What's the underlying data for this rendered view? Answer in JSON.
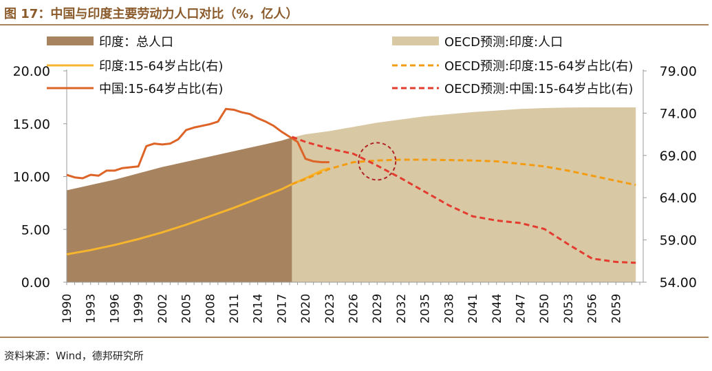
{
  "figure": {
    "title": "图 17：中国与印度主要劳动力人口对比（%，亿人）",
    "source": "资料来源：Wind，德邦研究所"
  },
  "colors": {
    "india_pop": "#A7835F",
    "oecd_india_pop": "#D8C8A4",
    "india_ratio": "#F7B52E",
    "oecd_india_ratio": "#F39C12",
    "china_ratio": "#DD6327",
    "oecd_china_ratio": "#E33B2E",
    "circle": "#B22222",
    "brand": "#8B5A2B"
  },
  "chart_data": {
    "type": "combo",
    "title": "中国与印度主要劳动力人口对比（%，亿人）",
    "x_ticks": [
      "1990",
      "1993",
      "1996",
      "1999",
      "2002",
      "2005",
      "2008",
      "2011",
      "2014",
      "2017",
      "2020",
      "2023",
      "2026",
      "2029",
      "2032",
      "2035",
      "2038",
      "2041",
      "2044",
      "2047",
      "2050",
      "2053",
      "2056",
      "2059"
    ],
    "x_range": [
      1990,
      2062
    ],
    "y_left": {
      "range": [
        0,
        20
      ],
      "ticks": [
        "0.00",
        "5.00",
        "10.00",
        "15.00",
        "20.00"
      ]
    },
    "y_right": {
      "range": [
        54,
        79
      ],
      "ticks": [
        "54.00",
        "59.00",
        "64.00",
        "69.00",
        "74.00",
        "79.00"
      ]
    },
    "legend": [
      {
        "label": "印度：总人口",
        "style": "area"
      },
      {
        "label": "OECD预测:印度:人口",
        "style": "area"
      },
      {
        "label": "印度:15-64岁占比(右)",
        "style": "line"
      },
      {
        "label": "OECD预测:印度:15-64岁占比(右)",
        "style": "dashed"
      },
      {
        "label": "中国:15-64岁占比(右)",
        "style": "line"
      },
      {
        "label": "OECD预测:中国:15-64岁占比(右)",
        "style": "dashed"
      }
    ],
    "series": [
      {
        "name": "印度：总人口",
        "axis": "left",
        "type": "area",
        "points": [
          [
            1990,
            8.7
          ],
          [
            1993,
            9.2
          ],
          [
            1996,
            9.7
          ],
          [
            1999,
            10.3
          ],
          [
            2002,
            10.9
          ],
          [
            2005,
            11.4
          ],
          [
            2008,
            11.9
          ],
          [
            2011,
            12.4
          ],
          [
            2014,
            12.9
          ],
          [
            2017,
            13.4
          ],
          [
            2018.3,
            13.7
          ]
        ]
      },
      {
        "name": "OECD预测:印度:人口",
        "axis": "left",
        "type": "area",
        "points": [
          [
            2018.3,
            13.7
          ],
          [
            2020,
            14.0
          ],
          [
            2023,
            14.3
          ],
          [
            2026,
            14.7
          ],
          [
            2029,
            15.1
          ],
          [
            2032,
            15.4
          ],
          [
            2035,
            15.7
          ],
          [
            2038,
            15.9
          ],
          [
            2041,
            16.1
          ],
          [
            2044,
            16.25
          ],
          [
            2047,
            16.4
          ],
          [
            2050,
            16.48
          ],
          [
            2053,
            16.53
          ],
          [
            2056,
            16.55
          ],
          [
            2059,
            16.55
          ],
          [
            2061.5,
            16.55
          ]
        ]
      },
      {
        "name": "印度:15-64岁占比(右)",
        "axis": "right",
        "type": "line",
        "points": [
          [
            1990,
            57.3
          ],
          [
            1993,
            57.8
          ],
          [
            1996,
            58.4
          ],
          [
            1999,
            59.1
          ],
          [
            2002,
            59.9
          ],
          [
            2005,
            60.8
          ],
          [
            2008,
            61.8
          ],
          [
            2011,
            62.8
          ],
          [
            2014,
            63.9
          ],
          [
            2017,
            65.0
          ],
          [
            2018.3,
            65.6
          ],
          [
            2020,
            66.3
          ],
          [
            2022,
            67.2
          ],
          [
            2023,
            67.5
          ]
        ]
      },
      {
        "name": "OECD预测:印度:15-64岁占比(右)",
        "axis": "right",
        "type": "dashed",
        "points": [
          [
            2018.3,
            65.6
          ],
          [
            2020,
            66.2
          ],
          [
            2023,
            67.4
          ],
          [
            2026,
            68.2
          ],
          [
            2029,
            68.4
          ],
          [
            2032,
            68.5
          ],
          [
            2035,
            68.5
          ],
          [
            2038,
            68.45
          ],
          [
            2041,
            68.4
          ],
          [
            2044,
            68.3
          ],
          [
            2047,
            68.0
          ],
          [
            2050,
            67.7
          ],
          [
            2053,
            67.2
          ],
          [
            2056,
            66.6
          ],
          [
            2059,
            66.0
          ],
          [
            2061.5,
            65.5
          ]
        ]
      },
      {
        "name": "中国:15-64岁占比(右)",
        "axis": "right",
        "type": "line",
        "points": [
          [
            1990,
            66.7
          ],
          [
            1991,
            66.4
          ],
          [
            1992,
            66.3
          ],
          [
            1993,
            66.7
          ],
          [
            1994,
            66.6
          ],
          [
            1995,
            67.2
          ],
          [
            1996,
            67.2
          ],
          [
            1997,
            67.5
          ],
          [
            1998,
            67.6
          ],
          [
            1999,
            67.7
          ],
          [
            2000,
            70.1
          ],
          [
            2001,
            70.4
          ],
          [
            2002,
            70.3
          ],
          [
            2003,
            70.4
          ],
          [
            2004,
            70.9
          ],
          [
            2005,
            72.0
          ],
          [
            2006,
            72.3
          ],
          [
            2007,
            72.5
          ],
          [
            2008,
            72.7
          ],
          [
            2009,
            73.0
          ],
          [
            2010,
            74.5
          ],
          [
            2011,
            74.4
          ],
          [
            2012,
            74.1
          ],
          [
            2013,
            73.9
          ],
          [
            2014,
            73.4
          ],
          [
            2015,
            73.0
          ],
          [
            2016,
            72.5
          ],
          [
            2017,
            71.8
          ],
          [
            2018,
            71.2
          ],
          [
            2019,
            70.6
          ],
          [
            2020,
            68.6
          ],
          [
            2021,
            68.3
          ],
          [
            2022,
            68.2
          ],
          [
            2023,
            68.2
          ]
        ]
      },
      {
        "name": "OECD预测:中国:15-64岁占比(右)",
        "axis": "right",
        "type": "dashed",
        "points": [
          [
            2018.3,
            71.2
          ],
          [
            2020,
            70.6
          ],
          [
            2023,
            69.8
          ],
          [
            2026,
            69.2
          ],
          [
            2029,
            67.8
          ],
          [
            2032,
            66.3
          ],
          [
            2035,
            64.7
          ],
          [
            2038,
            63.1
          ],
          [
            2041,
            61.8
          ],
          [
            2044,
            61.3
          ],
          [
            2047,
            61.0
          ],
          [
            2050,
            60.3
          ],
          [
            2053,
            58.5
          ],
          [
            2056,
            56.8
          ],
          [
            2059,
            56.4
          ],
          [
            2061.5,
            56.3
          ]
        ]
      }
    ],
    "annotations": [
      {
        "type": "dashed-circle",
        "note": "crossover of India and China 15-64 ratio projections",
        "x": 2029,
        "y_right": 68.3
      }
    ]
  }
}
